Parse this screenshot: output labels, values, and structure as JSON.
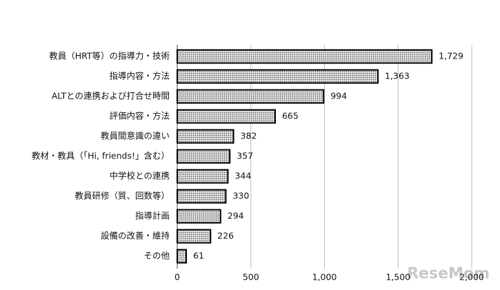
{
  "chart_data": {
    "type": "bar",
    "orientation": "horizontal",
    "categories": [
      "教員（HRT等）の指導力・技術",
      "指導内容・方法",
      "ALTとの連携および打合せ時間",
      "評価内容・方法",
      "教員間意識の違い",
      "教材・教具（「Hi, friends!」含む）",
      "中学校との連携",
      "教員研修（質、回数等）",
      "指導計画",
      "設備の改善・維持",
      "その他"
    ],
    "values": [
      1729,
      1363,
      994,
      665,
      382,
      357,
      344,
      330,
      294,
      226,
      61
    ],
    "value_labels": [
      "1,729",
      "1,363",
      "994",
      "665",
      "382",
      "357",
      "344",
      "330",
      "294",
      "226",
      "61"
    ],
    "color": "#555555",
    "xlim": [
      0,
      2000
    ],
    "xticks": [
      0,
      500,
      {
        "value": 1000,
        "label": "1,000"
      },
      {
        "value": 1500,
        "label": "1,500"
      },
      {
        "value": 2000,
        "label": "2,000"
      }
    ],
    "grid": true,
    "watermark": "ReseMom"
  }
}
